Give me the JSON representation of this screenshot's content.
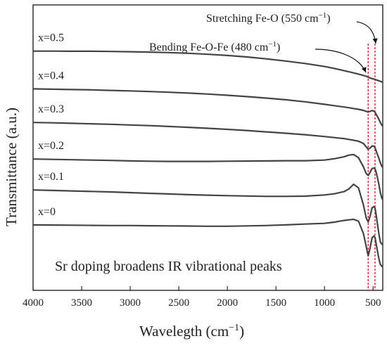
{
  "chart_data": {
    "type": "line",
    "xlabel": "Wavelegth (cm",
    "xlabel_sup": "−1",
    "xlabel_close": ")",
    "ylabel": "Transmittance (a.u.)",
    "xlim": [
      4000,
      400
    ],
    "x_reversed": true,
    "xticks": [
      4000,
      3500,
      3000,
      2500,
      2000,
      1500,
      1000,
      500
    ],
    "yticks_shown": false,
    "grid": false,
    "annotations": [
      {
        "text": "Stretching Fe-O (550 cm",
        "sup": "−1",
        "close": ")",
        "x": 480
      },
      {
        "text": "Bending Fe-O-Fe (480 cm",
        "sup": "−1",
        "close": ")",
        "x": 550
      }
    ],
    "reference_lines": [
      550,
      480
    ],
    "reference_color": "#d62728",
    "line_color": "#444444",
    "caption": "Sr doping broadens IR vibrational peaks",
    "x": [
      4000,
      3800,
      3600,
      3400,
      3200,
      3000,
      2800,
      2600,
      2400,
      2200,
      2000,
      1800,
      1600,
      1400,
      1200,
      1000,
      900,
      800,
      750,
      700,
      650,
      600,
      570,
      550,
      530,
      510,
      490,
      480,
      470,
      455,
      440,
      425,
      410,
      400
    ],
    "series": [
      {
        "name": "x=0.5",
        "values": [
          72.5,
          72.5,
          72.4,
          72.4,
          72.3,
          72.1,
          71.9,
          71.6,
          71.2,
          70.6,
          69.9,
          69.0,
          67.9,
          66.6,
          65.1,
          63.3,
          62.2,
          60.9,
          60.2,
          59.5,
          58.8,
          58.0,
          57.5,
          57.0,
          56.5,
          56.1,
          55.8,
          55.6,
          55.4,
          55.1,
          54.8,
          54.5,
          54.2,
          54.0
        ]
      },
      {
        "name": "x=0.4",
        "values": [
          50.0,
          49.8,
          49.6,
          49.4,
          49.1,
          48.8,
          48.4,
          48.0,
          47.5,
          46.9,
          46.2,
          45.4,
          44.5,
          43.5,
          42.3,
          40.8,
          40.0,
          39.2,
          38.8,
          38.3,
          37.8,
          37.2,
          36.6,
          36.2,
          36.6,
          37.1,
          36.7,
          36.1,
          35.0,
          33.5,
          31.8,
          30.0,
          28.4,
          27.8
        ]
      },
      {
        "name": "x=0.3",
        "values": [
          30.0,
          29.8,
          29.5,
          29.2,
          28.9,
          28.5,
          28.1,
          27.6,
          27.1,
          26.5,
          25.9,
          25.2,
          24.4,
          23.6,
          22.7,
          21.6,
          21.0,
          20.4,
          19.9,
          19.4,
          18.8,
          17.5,
          15.4,
          14.0,
          14.8,
          16.0,
          15.9,
          15.0,
          13.4,
          11.0,
          8.6,
          6.0,
          4.0,
          3.2
        ]
      },
      {
        "name": "x=0.2",
        "values": [
          8.2,
          8.0,
          7.8,
          7.6,
          7.4,
          7.1,
          6.9,
          6.8,
          6.8,
          6.8,
          6.9,
          7.0,
          7.1,
          7.2,
          7.2,
          7.6,
          8.4,
          9.5,
          10.5,
          10.9,
          9.0,
          3.6,
          -0.5,
          -1.6,
          0.4,
          2.6,
          2.8,
          2.3,
          0.8,
          -2.8,
          -7.0,
          -11.8,
          -15.0,
          -16.0
        ]
      },
      {
        "name": "x=0.1",
        "values": [
          -10.2,
          -10.5,
          -10.8,
          -11.1,
          -11.4,
          -11.8,
          -12.2,
          -12.6,
          -13.0,
          -13.3,
          -13.6,
          -13.8,
          -14.0,
          -14.0,
          -13.9,
          -13.2,
          -12.5,
          -11.2,
          -9.6,
          -6.8,
          -9.0,
          -19.0,
          -27.0,
          -29.3,
          -25.6,
          -20.8,
          -20.1,
          -21.1,
          -24.2,
          -30.4,
          -36.4,
          -41.2,
          -42.4,
          -42.6
        ]
      },
      {
        "name": "x=0",
        "values": [
          -31.0,
          -31.1,
          -31.2,
          -31.3,
          -31.4,
          -31.4,
          -31.5,
          -31.6,
          -31.7,
          -31.8,
          -31.8,
          -31.6,
          -31.4,
          -31.0,
          -30.5,
          -30.1,
          -29.4,
          -28.4,
          -28.0,
          -27.7,
          -28.8,
          -36.0,
          -44.0,
          -49.5,
          -44.5,
          -38.6,
          -37.6,
          -38.4,
          -41.6,
          -46.6,
          -51.2,
          -54.6,
          -55.6,
          -56.0
        ]
      }
    ],
    "ylim": [
      -70,
      100
    ]
  }
}
